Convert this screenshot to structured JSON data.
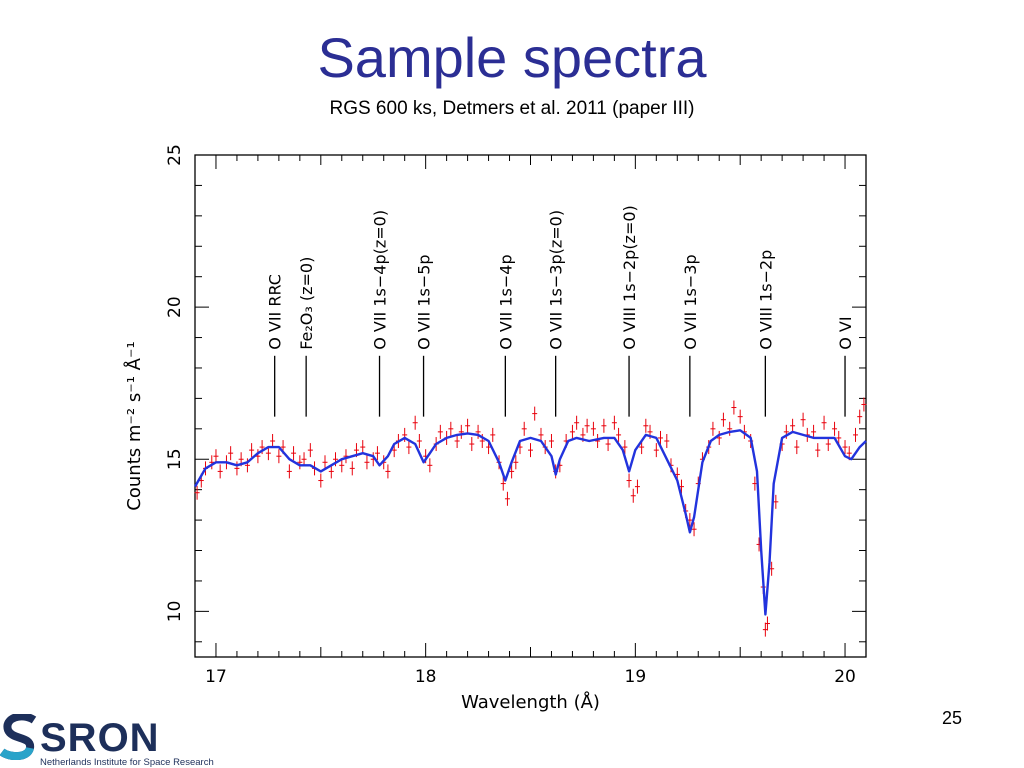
{
  "slide": {
    "title": "Sample spectra",
    "subtitle": "RGS 600 ks, Detmers et al. 2011 (paper III)",
    "page_number": "25",
    "logo_text": "SRON",
    "logo_subtitle": "Netherlands Institute for Space Research"
  },
  "colors": {
    "title": "#2b2e94",
    "data_points": "#e8000b",
    "model_line": "#2233dd",
    "axes": "#000000"
  },
  "chart_data": {
    "type": "line",
    "xlabel": "Wavelength (Å)",
    "ylabel": "Counts m⁻² s⁻¹ Å⁻¹",
    "xlim": [
      16.9,
      20.1
    ],
    "ylim": [
      8.5,
      25
    ],
    "x_ticks": [
      17,
      18,
      19,
      20
    ],
    "y_ticks": [
      10,
      15,
      20,
      25
    ],
    "grid": false,
    "line_labels": [
      {
        "x": 17.28,
        "y_top": 17.0,
        "text": "O VII RRC"
      },
      {
        "x": 17.43,
        "y_top": 17.0,
        "text": "Fe₂O₃ (z=0)"
      },
      {
        "x": 17.78,
        "y_top": 17.0,
        "text": "O VII 1s−4p(z=0)"
      },
      {
        "x": 17.99,
        "y_top": 17.0,
        "text": "O VII 1s−5p"
      },
      {
        "x": 18.38,
        "y_top": 17.0,
        "text": "O VII 1s−4p"
      },
      {
        "x": 18.62,
        "y_top": 17.0,
        "text": "O VII 1s−3p(z=0)"
      },
      {
        "x": 18.97,
        "y_top": 17.0,
        "text": "O VIII 1s−2p(z=0)"
      },
      {
        "x": 19.26,
        "y_top": 17.0,
        "text": "O VII 1s−3p"
      },
      {
        "x": 19.62,
        "y_top": 17.0,
        "text": "O VIII 1s−2p"
      },
      {
        "x": 20.0,
        "y_top": 17.0,
        "text": "O VI"
      }
    ],
    "series": [
      {
        "kind": "model",
        "x": [
          16.9,
          16.95,
          17.0,
          17.05,
          17.1,
          17.15,
          17.2,
          17.25,
          17.3,
          17.35,
          17.4,
          17.45,
          17.5,
          17.55,
          17.6,
          17.65,
          17.7,
          17.75,
          17.78,
          17.82,
          17.85,
          17.9,
          17.95,
          17.99,
          18.02,
          18.05,
          18.1,
          18.15,
          18.2,
          18.25,
          18.3,
          18.35,
          18.38,
          18.41,
          18.45,
          18.5,
          18.55,
          18.6,
          18.62,
          18.64,
          18.68,
          18.72,
          18.78,
          18.85,
          18.9,
          18.94,
          18.97,
          19.0,
          19.05,
          19.1,
          19.15,
          19.2,
          19.24,
          19.26,
          19.28,
          19.32,
          19.36,
          19.4,
          19.45,
          19.5,
          19.55,
          19.58,
          19.6,
          19.62,
          19.64,
          19.66,
          19.7,
          19.75,
          19.8,
          19.85,
          19.9,
          19.95,
          20.0,
          20.03,
          20.07,
          20.1
        ],
        "y": [
          14.1,
          14.7,
          14.9,
          14.9,
          14.8,
          14.9,
          15.2,
          15.4,
          15.4,
          15.0,
          14.8,
          14.8,
          14.6,
          14.8,
          15.0,
          15.1,
          15.2,
          15.1,
          14.8,
          15.1,
          15.5,
          15.7,
          15.5,
          14.9,
          15.2,
          15.5,
          15.7,
          15.8,
          15.85,
          15.8,
          15.6,
          14.9,
          14.3,
          14.9,
          15.6,
          15.7,
          15.6,
          15.1,
          14.5,
          15.0,
          15.6,
          15.7,
          15.6,
          15.7,
          15.7,
          15.3,
          14.6,
          15.3,
          15.8,
          15.7,
          15.0,
          14.3,
          13.2,
          12.6,
          13.1,
          14.9,
          15.6,
          15.8,
          15.9,
          15.95,
          15.7,
          14.6,
          12.0,
          9.9,
          11.6,
          14.2,
          15.7,
          15.9,
          15.8,
          15.7,
          15.7,
          15.7,
          15.1,
          15.0,
          15.4,
          15.6
        ]
      },
      {
        "kind": "data",
        "x": [
          16.91,
          16.93,
          16.95,
          16.98,
          17.0,
          17.02,
          17.05,
          17.07,
          17.1,
          17.12,
          17.15,
          17.17,
          17.2,
          17.22,
          17.25,
          17.27,
          17.3,
          17.32,
          17.35,
          17.37,
          17.4,
          17.42,
          17.45,
          17.47,
          17.5,
          17.52,
          17.55,
          17.57,
          17.6,
          17.62,
          17.65,
          17.67,
          17.7,
          17.72,
          17.75,
          17.77,
          17.8,
          17.82,
          17.85,
          17.87,
          17.9,
          17.92,
          17.95,
          17.97,
          18.0,
          18.02,
          18.05,
          18.07,
          18.1,
          18.12,
          18.15,
          18.17,
          18.2,
          18.22,
          18.25,
          18.27,
          18.3,
          18.32,
          18.35,
          18.37,
          18.39,
          18.41,
          18.43,
          18.45,
          18.47,
          18.5,
          18.52,
          18.55,
          18.57,
          18.6,
          18.62,
          18.64,
          18.67,
          18.7,
          18.72,
          18.75,
          18.77,
          18.8,
          18.82,
          18.85,
          18.87,
          18.9,
          18.92,
          18.95,
          18.97,
          18.99,
          19.01,
          19.03,
          19.05,
          19.07,
          19.1,
          19.12,
          19.15,
          19.17,
          19.2,
          19.22,
          19.24,
          19.26,
          19.28,
          19.3,
          19.32,
          19.35,
          19.37,
          19.4,
          19.42,
          19.45,
          19.47,
          19.5,
          19.52,
          19.55,
          19.57,
          19.59,
          19.61,
          19.62,
          19.63,
          19.65,
          19.67,
          19.7,
          19.72,
          19.75,
          19.77,
          19.8,
          19.82,
          19.85,
          19.87,
          19.9,
          19.92,
          19.95,
          19.97,
          20.0,
          20.02,
          20.05,
          20.07,
          20.09
        ],
        "y": [
          13.9,
          14.3,
          14.7,
          14.9,
          15.1,
          14.6,
          14.9,
          15.2,
          14.7,
          15.0,
          14.8,
          15.3,
          15.1,
          15.4,
          15.2,
          15.6,
          15.1,
          15.4,
          14.6,
          15.2,
          14.9,
          15.0,
          15.3,
          14.7,
          14.3,
          14.9,
          14.6,
          15.0,
          14.8,
          15.1,
          14.7,
          15.3,
          15.4,
          14.9,
          15.0,
          15.2,
          14.9,
          14.6,
          15.3,
          15.6,
          15.8,
          15.4,
          16.2,
          15.6,
          15.1,
          14.8,
          15.5,
          15.9,
          15.7,
          16.0,
          15.6,
          15.9,
          16.1,
          15.5,
          15.9,
          15.6,
          15.4,
          15.8,
          14.9,
          14.2,
          13.7,
          14.6,
          14.9,
          15.4,
          16.0,
          15.3,
          16.5,
          15.8,
          15.4,
          15.6,
          14.6,
          14.8,
          15.6,
          15.9,
          16.2,
          15.8,
          16.1,
          16.0,
          15.6,
          16.1,
          15.5,
          16.2,
          15.8,
          15.4,
          14.3,
          13.8,
          14.1,
          15.4,
          16.1,
          15.9,
          15.3,
          15.7,
          15.6,
          14.8,
          14.5,
          14.1,
          13.3,
          13.0,
          12.7,
          14.2,
          15.0,
          15.4,
          16.0,
          15.7,
          16.3,
          16.0,
          16.7,
          16.4,
          15.9,
          15.6,
          14.2,
          12.2,
          10.8,
          9.4,
          9.6,
          11.4,
          13.6,
          15.5,
          15.9,
          16.1,
          15.4,
          16.3,
          15.8,
          15.9,
          15.3,
          16.2,
          15.5,
          16.0,
          15.7,
          15.4,
          15.2,
          15.8,
          16.4,
          16.8
        ]
      }
    ]
  }
}
